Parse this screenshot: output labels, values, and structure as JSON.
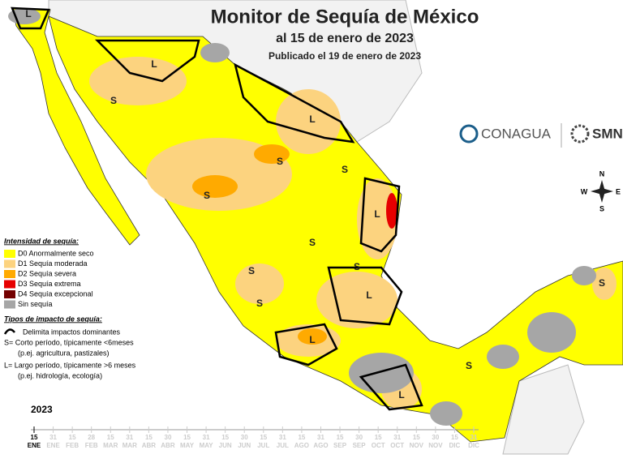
{
  "header": {
    "title": "Monitor de Sequía de México",
    "subtitle": "al 15 de enero de 2023",
    "published": "Publicado el 19 de enero de 2023"
  },
  "legend": {
    "title": "Intensidad de sequía:",
    "items": [
      {
        "label": "D0 Anormalmente seco",
        "color": "#ffff00"
      },
      {
        "label": "D1 Sequía moderada",
        "color": "#fcd37f"
      },
      {
        "label": "D2 Sequía severa",
        "color": "#ffaa00"
      },
      {
        "label": "D3 Sequía extrema",
        "color": "#e60000"
      },
      {
        "label": "D4 Sequía excepcional",
        "color": "#730000"
      },
      {
        "label": "Sin sequía",
        "color": "#a6a6a6"
      }
    ]
  },
  "impacts": {
    "title": "Tipos de impacto de sequía:",
    "lines": [
      "Delimita impactos dominantes",
      "S= Corto período, típicamente <6meses",
      "(p.ej. agricultura, pastizales)",
      "L= Largo período, típicamente >6 meses",
      "(p.ej. hidrología, ecología)"
    ]
  },
  "logos": {
    "conagua": "CONAGUA",
    "smn": "SMN"
  },
  "compass": {
    "n": "N",
    "s": "S",
    "e": "E",
    "w": "W"
  },
  "map_labels": [
    "L",
    "L",
    "S",
    "L",
    "S",
    "S",
    "S",
    "L",
    "S",
    "S",
    "L",
    "S",
    "L",
    "S",
    "L",
    "S",
    "S"
  ],
  "timeline": {
    "year": "2023",
    "marks": [
      {
        "day": "15",
        "month": "ENE"
      },
      {
        "day": "31",
        "month": "ENE"
      },
      {
        "day": "15",
        "month": "FEB"
      },
      {
        "day": "28",
        "month": "FEB"
      },
      {
        "day": "15",
        "month": "MAR"
      },
      {
        "day": "31",
        "month": "MAR"
      },
      {
        "day": "15",
        "month": "ABR"
      },
      {
        "day": "30",
        "month": "ABR"
      },
      {
        "day": "15",
        "month": "MAY"
      },
      {
        "day": "31",
        "month": "MAY"
      },
      {
        "day": "15",
        "month": "JUN"
      },
      {
        "day": "30",
        "month": "JUN"
      },
      {
        "day": "15",
        "month": "JUL"
      },
      {
        "day": "31",
        "month": "JUL"
      },
      {
        "day": "15",
        "month": "AGO"
      },
      {
        "day": "31",
        "month": "AGO"
      },
      {
        "day": "15",
        "month": "SEP"
      },
      {
        "day": "30",
        "month": "SEP"
      },
      {
        "day": "15",
        "month": "OCT"
      },
      {
        "day": "31",
        "month": "OCT"
      },
      {
        "day": "15",
        "month": "NOV"
      },
      {
        "day": "30",
        "month": "NOV"
      },
      {
        "day": "15",
        "month": "DIC"
      },
      {
        "day": "31",
        "month": "DIC"
      }
    ]
  }
}
